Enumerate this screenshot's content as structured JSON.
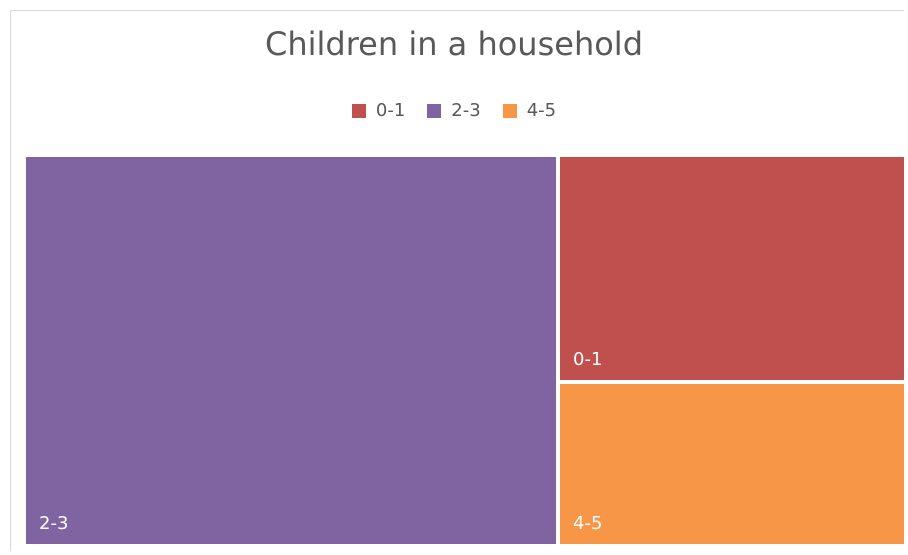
{
  "chart_data": {
    "type": "treemap",
    "title": "Children in a household",
    "legend_position": "top",
    "series": [
      {
        "name": "0-1",
        "value": 25,
        "color": "#C0504D"
      },
      {
        "name": "2-3",
        "value": 66,
        "color": "#8064A2"
      },
      {
        "name": "4-5",
        "value": 18,
        "color": "#F79646"
      }
    ]
  }
}
